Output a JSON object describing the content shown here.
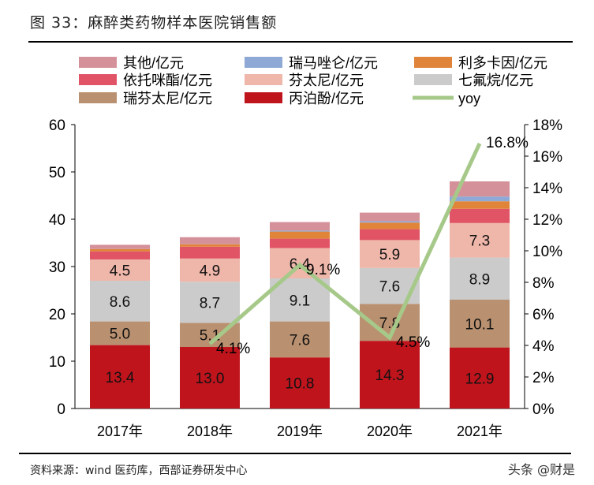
{
  "title": "图 33：麻醉类药物样本医院销售额",
  "source": "资料来源：wind 医药库，西部证券研发中心",
  "watermark": "头条 @财是",
  "chart_data": {
    "type": "bar",
    "stacked": true,
    "categories": [
      "2017年",
      "2018年",
      "2019年",
      "2020年",
      "2021年"
    ],
    "ylim": [
      0,
      60
    ],
    "yticks": [
      0,
      10,
      20,
      30,
      40,
      50,
      60
    ],
    "y2lim": [
      0,
      18
    ],
    "y2ticks": [
      "0%",
      "2%",
      "4%",
      "6%",
      "8%",
      "10%",
      "12%",
      "14%",
      "16%",
      "18%"
    ],
    "legend_placement": "top",
    "series": [
      {
        "name": "丙泊酚/亿元",
        "color": "#c0141d",
        "values": [
          13.4,
          13.0,
          10.8,
          14.3,
          12.9
        ],
        "labels": [
          "13.4",
          "13.0",
          "10.8",
          "14.3",
          "12.9"
        ]
      },
      {
        "name": "瑞芬太尼/亿元",
        "color": "#b99170",
        "values": [
          5.0,
          5.1,
          7.6,
          7.8,
          10.1
        ],
        "labels": [
          "5.0",
          "5.1",
          "7.6",
          "7.8",
          "10.1"
        ]
      },
      {
        "name": "七氟烷/亿元",
        "color": "#cbcbcb",
        "values": [
          8.6,
          8.7,
          9.1,
          7.6,
          8.9
        ],
        "labels": [
          "8.6",
          "8.7",
          "9.1",
          "7.6",
          "8.9"
        ]
      },
      {
        "name": "芬太尼/亿元",
        "color": "#efb6aa",
        "values": [
          4.5,
          4.9,
          6.4,
          5.9,
          7.3
        ],
        "labels": [
          "4.5",
          "4.9",
          "6.4",
          "5.9",
          "7.3"
        ]
      },
      {
        "name": "依托咪酯/亿元",
        "color": "#e05466",
        "values": [
          1.7,
          2.5,
          2.0,
          2.3,
          3.0
        ]
      },
      {
        "name": "利多卡因/亿元",
        "color": "#e0843a",
        "values": [
          0.5,
          0.5,
          1.5,
          1.4,
          1.6
        ]
      },
      {
        "name": "瑞马唑仑/亿元",
        "color": "#8ea9d6",
        "values": [
          0,
          0,
          0.2,
          0.3,
          1.0
        ]
      },
      {
        "name": "其他/亿元",
        "color": "#d4919a",
        "values": [
          0.9,
          1.5,
          1.8,
          1.8,
          3.2
        ]
      }
    ],
    "line": {
      "name": "yoy",
      "color": "#a6c98a",
      "values": [
        null,
        4.1,
        9.1,
        4.5,
        16.8
      ],
      "labels": [
        "",
        "4.1%",
        "9.1%",
        "4.5%",
        "16.8%"
      ]
    }
  }
}
